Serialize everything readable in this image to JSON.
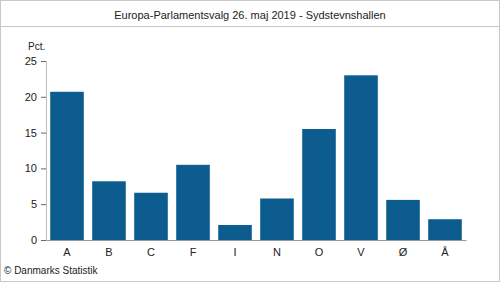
{
  "chart_data": {
    "type": "bar",
    "title": "Europa-Parlamentsvalg 26. maj 2019 - Sydstevnshallen",
    "y_label": "Pct.",
    "footer": "© Danmarks Statistik",
    "categories": [
      "A",
      "B",
      "C",
      "F",
      "I",
      "N",
      "O",
      "V",
      "Ø",
      "Å"
    ],
    "values": [
      20.7,
      8.2,
      6.6,
      10.5,
      2.1,
      5.8,
      15.5,
      23.0,
      5.6,
      2.9
    ],
    "color": "#0d5c8f",
    "ylim": [
      0,
      25
    ],
    "yticks": [
      0,
      5,
      10,
      15,
      20,
      25
    ],
    "grid": false
  }
}
